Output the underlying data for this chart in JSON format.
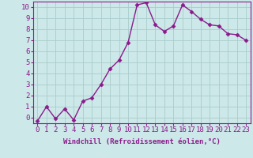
{
  "x": [
    0,
    1,
    2,
    3,
    4,
    5,
    6,
    7,
    8,
    9,
    10,
    11,
    12,
    13,
    14,
    15,
    16,
    17,
    18,
    19,
    20,
    21,
    22,
    23
  ],
  "y": [
    -0.3,
    1.0,
    -0.1,
    0.8,
    -0.2,
    1.5,
    1.8,
    3.0,
    4.4,
    5.2,
    6.8,
    10.2,
    10.4,
    8.4,
    7.8,
    8.3,
    10.2,
    9.6,
    8.9,
    8.4,
    8.3,
    7.6,
    7.5,
    7.0
  ],
  "line_color": "#8B1A8B",
  "marker": "D",
  "marker_size": 2.5,
  "bg_color": "#cce8e8",
  "grid_color": "#aacccc",
  "xlabel": "Windchill (Refroidissement éolien,°C)",
  "xlim": [
    -0.5,
    23.5
  ],
  "ylim": [
    -0.5,
    10.5
  ],
  "yticks": [
    0,
    1,
    2,
    3,
    4,
    5,
    6,
    7,
    8,
    9,
    10
  ],
  "xticks": [
    0,
    1,
    2,
    3,
    4,
    5,
    6,
    7,
    8,
    9,
    10,
    11,
    12,
    13,
    14,
    15,
    16,
    17,
    18,
    19,
    20,
    21,
    22,
    23
  ],
  "xlabel_fontsize": 6.5,
  "tick_fontsize": 6.5,
  "line_width": 1.0
}
